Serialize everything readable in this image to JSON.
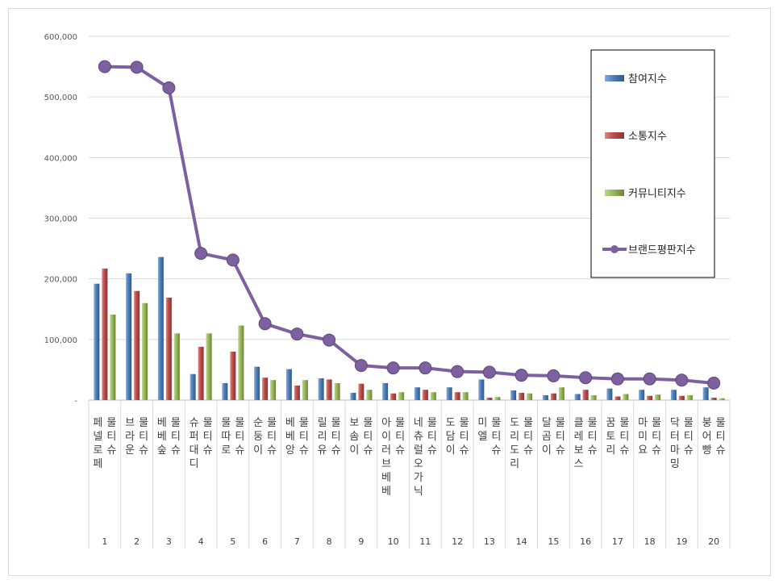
{
  "chart_data": {
    "type": "bar",
    "title": "",
    "xlabel": "",
    "ylabel": "",
    "ylim": [
      0,
      600000
    ],
    "yticks": [
      "-",
      "100,000",
      "200,000",
      "300,000",
      "400,000",
      "500,000",
      "600,000"
    ],
    "ranks": [
      "1",
      "2",
      "3",
      "4",
      "5",
      "6",
      "7",
      "8",
      "9",
      "10",
      "11",
      "12",
      "13",
      "14",
      "15",
      "16",
      "17",
      "18",
      "19",
      "20"
    ],
    "categories": [
      "페넬로페 물티슈",
      "브라운 물티슈",
      "베베숲 물티슈",
      "슈퍼대디 물티슈",
      "물따로 물티슈",
      "순둥이 물티슈",
      "베베앙 물티슈",
      "릴리유 물티슈",
      "보솜이 물티슈",
      "아이러브베베 물티슈",
      "네츄럴오가닉 물티슈",
      "도담이 물티슈",
      "미엘 물티슈",
      "도리도리 물티슈",
      "달곰이 물티슈",
      "클레보스 물티슈",
      "꿈토리 물티슈",
      "마미요 물티슈",
      "닥터마밍 물티슈",
      "붕어빵 물티슈"
    ],
    "series": [
      {
        "name": "참여지수",
        "kind": "bar",
        "color": "#4a7ebb",
        "values": [
          192000,
          209000,
          236000,
          43000,
          28000,
          55000,
          51000,
          36000,
          12000,
          28000,
          21000,
          21000,
          34000,
          16000,
          8000,
          10000,
          19000,
          17000,
          17000,
          21000
        ]
      },
      {
        "name": "소통지수",
        "kind": "bar",
        "color": "#be4b48",
        "values": [
          217000,
          180000,
          169000,
          88000,
          80000,
          37000,
          24000,
          34000,
          27000,
          11000,
          17000,
          13000,
          4000,
          12000,
          11000,
          17000,
          6000,
          7000,
          7000,
          4000
        ]
      },
      {
        "name": "커뮤니티지수",
        "kind": "bar",
        "color": "#98b954",
        "values": [
          141000,
          160000,
          110000,
          110000,
          123000,
          33000,
          33000,
          28000,
          17000,
          13000,
          13000,
          13000,
          5000,
          11000,
          21000,
          8000,
          10000,
          9000,
          8000,
          3000
        ]
      },
      {
        "name": "브랜드평판지수",
        "kind": "line",
        "color": "#7d60a0",
        "values": [
          550000,
          549000,
          515000,
          242000,
          231000,
          126000,
          109000,
          99000,
          57000,
          53000,
          53000,
          47000,
          46000,
          41000,
          40000,
          37000,
          35000,
          35000,
          33000,
          28000
        ]
      }
    ],
    "legend_position": "right",
    "grid": true
  }
}
